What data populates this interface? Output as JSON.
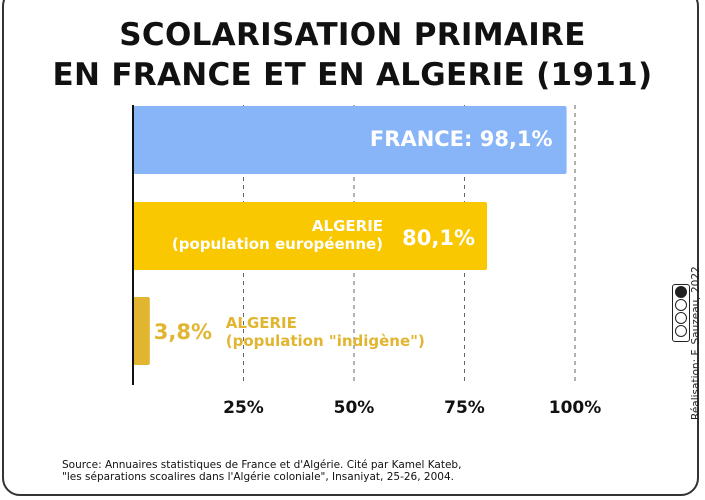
{
  "title": {
    "line1": "SCOLARISATION PRIMAIRE",
    "line2": "EN FRANCE ET EN ALGERIE (1911)"
  },
  "colors": {
    "france": "#88b4f8",
    "algerie_europeenne": "#f9c800",
    "algerie_indigene": "#e2b531"
  },
  "chart_data": {
    "type": "bar",
    "orientation": "horizontal",
    "categories": [
      "FRANCE",
      "ALGERIE (population européenne)",
      "ALGERIE (population \"indigène\")"
    ],
    "values": [
      98.1,
      80.1,
      3.8
    ],
    "xlim": [
      0,
      100
    ],
    "xticks": [
      "25%",
      "50%",
      "75%",
      "100%"
    ],
    "xtick_values": [
      25,
      50,
      75,
      100
    ],
    "grid": "vertical dashed",
    "labels": [
      {
        "lines": [
          "FRANCE: 98,1%"
        ]
      },
      {
        "lines": [
          "ALGERIE",
          "(population européenne)"
        ],
        "value": "80,1%"
      },
      {
        "lines": [
          "ALGERIE",
          "(population \"indigène\")"
        ],
        "value": "3,8%"
      }
    ]
  },
  "source": {
    "line1": "Source: Annuaires statistiques de France et d'Algérie. Cité par Kamel Kateb,",
    "line2": "\"les séparations scoalires dans l'Algérie coloniale\", Insaniyat, 25-26, 2004."
  },
  "credit": "Réalisation: F. Sauzeau, 2022",
  "license": "cc-by-nc-sa-icon"
}
